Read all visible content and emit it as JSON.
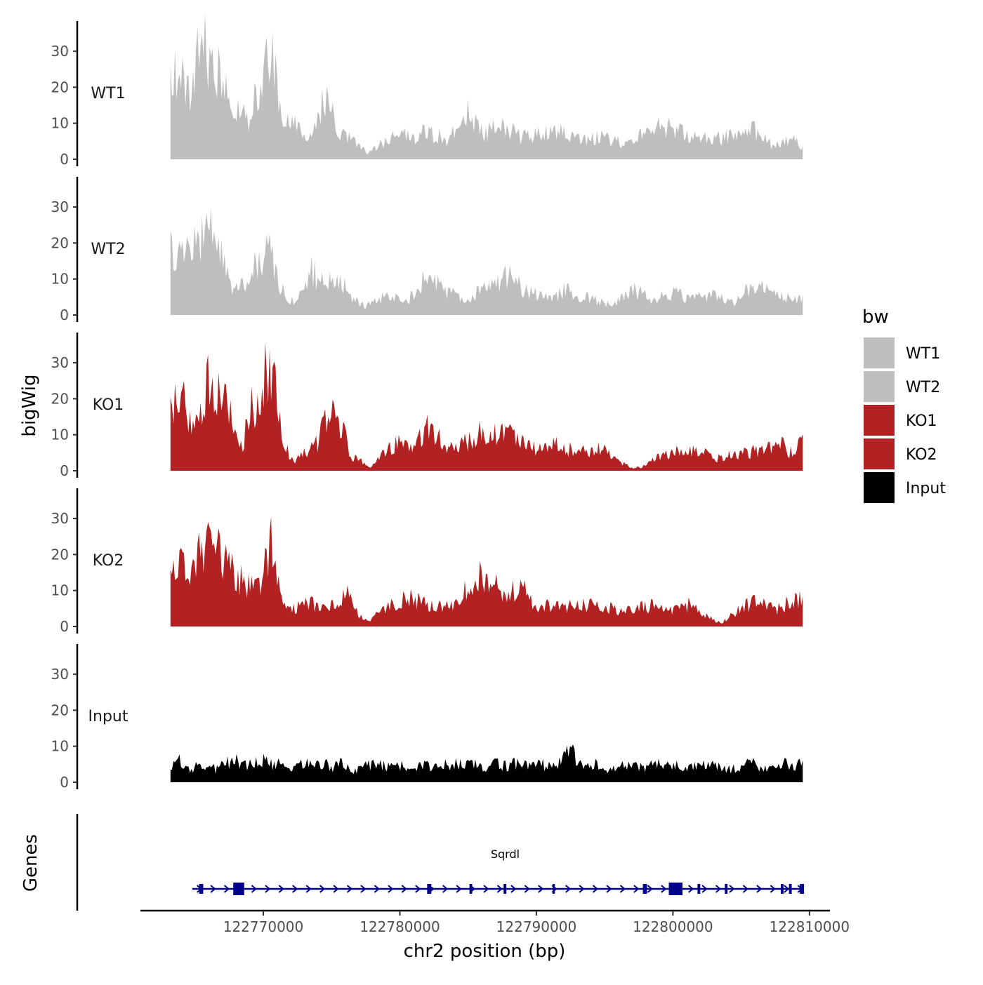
{
  "chart_data": {
    "type": "area",
    "ylabel": "bigWig",
    "xlabel": "chr2 position (bp)",
    "xlim": [
      122761000,
      122811500
    ],
    "region": [
      122763200,
      122809600
    ],
    "ylim": [
      0,
      38
    ],
    "y_ticks": [
      0,
      10,
      20,
      30
    ],
    "x_ticks": [
      122770000,
      122780000,
      122790000,
      122800000,
      122810000
    ],
    "x_tick_labels": [
      "122770000",
      "122780000",
      "122790000",
      "122800000",
      "122810000"
    ],
    "legend": {
      "title": "bw",
      "position": "right",
      "entries": [
        {
          "label": "WT1",
          "color": "#bebebe"
        },
        {
          "label": "WT2",
          "color": "#bebebe"
        },
        {
          "label": "KO1",
          "color": "#b22222"
        },
        {
          "label": "KO2",
          "color": "#b22222"
        },
        {
          "label": "Input",
          "color": "#000000"
        }
      ]
    },
    "tracks": [
      {
        "name": "WT1",
        "color": "#bebebe",
        "peaks": [
          [
            122763200,
            25
          ],
          [
            122763600,
            29
          ],
          [
            122764100,
            30
          ],
          [
            122764600,
            18
          ],
          [
            122765200,
            33
          ],
          [
            122765700,
            34
          ],
          [
            122766200,
            32
          ],
          [
            122766700,
            27
          ],
          [
            122767200,
            22
          ],
          [
            122767700,
            14
          ],
          [
            122768300,
            16
          ],
          [
            122768900,
            12
          ],
          [
            122769500,
            20
          ],
          [
            122770300,
            33
          ],
          [
            122770600,
            35
          ],
          [
            122771000,
            22
          ],
          [
            122771500,
            13
          ],
          [
            122772500,
            10
          ],
          [
            122773500,
            7
          ],
          [
            122774500,
            20
          ],
          [
            122775500,
            10
          ],
          [
            122776700,
            5
          ],
          [
            122777700,
            2
          ],
          [
            122779000,
            6
          ],
          [
            122780000,
            8
          ],
          [
            122781000,
            7
          ],
          [
            122782000,
            9
          ],
          [
            122783500,
            6
          ],
          [
            122784800,
            15
          ],
          [
            122786000,
            8
          ],
          [
            122787500,
            10
          ],
          [
            122789000,
            7
          ],
          [
            122790500,
            8
          ],
          [
            122792000,
            9
          ],
          [
            122793500,
            6
          ],
          [
            122795000,
            7
          ],
          [
            122796500,
            5
          ],
          [
            122798000,
            8
          ],
          [
            122799300,
            11
          ],
          [
            122800500,
            9
          ],
          [
            122801500,
            7
          ],
          [
            122803000,
            6
          ],
          [
            122804500,
            8
          ],
          [
            122805300,
            11
          ],
          [
            122806200,
            8
          ],
          [
            122807500,
            4
          ],
          [
            122808600,
            7
          ],
          [
            122809600,
            3
          ]
        ]
      },
      {
        "name": "WT2",
        "color": "#bebebe",
        "peaks": [
          [
            122763200,
            20
          ],
          [
            122763600,
            15
          ],
          [
            122764200,
            21
          ],
          [
            122764700,
            17
          ],
          [
            122765200,
            24
          ],
          [
            122765800,
            26
          ],
          [
            122766300,
            28
          ],
          [
            122766800,
            22
          ],
          [
            122767200,
            16
          ],
          [
            122767700,
            8
          ],
          [
            122768300,
            9
          ],
          [
            122769000,
            12
          ],
          [
            122769700,
            17
          ],
          [
            122770400,
            21
          ],
          [
            122771000,
            12
          ],
          [
            122771600,
            6
          ],
          [
            122772500,
            4
          ],
          [
            122773500,
            14
          ],
          [
            122774500,
            9
          ],
          [
            122775700,
            12
          ],
          [
            122776500,
            5
          ],
          [
            122777500,
            3
          ],
          [
            122779000,
            6
          ],
          [
            122780500,
            4
          ],
          [
            122782000,
            13
          ],
          [
            122783500,
            7
          ],
          [
            122785000,
            5
          ],
          [
            122786500,
            9
          ],
          [
            122787800,
            13
          ],
          [
            122789500,
            7
          ],
          [
            122791000,
            5
          ],
          [
            122792000,
            8
          ],
          [
            122793500,
            6
          ],
          [
            122795500,
            3
          ],
          [
            122797000,
            8
          ],
          [
            122798500,
            5
          ],
          [
            122800000,
            7
          ],
          [
            122801500,
            5
          ],
          [
            122803000,
            7
          ],
          [
            122804500,
            4
          ],
          [
            122805500,
            8
          ],
          [
            122807000,
            9
          ],
          [
            122808500,
            5
          ],
          [
            122809600,
            5
          ]
        ]
      },
      {
        "name": "KO1",
        "color": "#b22222",
        "peaks": [
          [
            122763200,
            24
          ],
          [
            122763700,
            20
          ],
          [
            122764300,
            22
          ],
          [
            122764800,
            14
          ],
          [
            122765300,
            20
          ],
          [
            122765800,
            26
          ],
          [
            122766300,
            29
          ],
          [
            122766800,
            25
          ],
          [
            122767400,
            20
          ],
          [
            122768000,
            13
          ],
          [
            122768500,
            7
          ],
          [
            122769000,
            20
          ],
          [
            122769700,
            22
          ],
          [
            122770300,
            33
          ],
          [
            122770800,
            28
          ],
          [
            122771400,
            9
          ],
          [
            122772200,
            3
          ],
          [
            122773000,
            6
          ],
          [
            122774000,
            9
          ],
          [
            122774800,
            18
          ],
          [
            122775600,
            16
          ],
          [
            122776400,
            5
          ],
          [
            122777200,
            3
          ],
          [
            122777700,
            1
          ],
          [
            122778500,
            4
          ],
          [
            122779800,
            9
          ],
          [
            122781000,
            6
          ],
          [
            122782100,
            15
          ],
          [
            122783500,
            7
          ],
          [
            122785000,
            9
          ],
          [
            122786300,
            13
          ],
          [
            122787700,
            11
          ],
          [
            122788800,
            11
          ],
          [
            122790000,
            7
          ],
          [
            122791500,
            8
          ],
          [
            122793000,
            6
          ],
          [
            122794800,
            7
          ],
          [
            122796000,
            3
          ],
          [
            122797000,
            1
          ],
          [
            122797700,
            1
          ],
          [
            122798800,
            4
          ],
          [
            122800200,
            6
          ],
          [
            122801500,
            7
          ],
          [
            122803000,
            4
          ],
          [
            122804500,
            5
          ],
          [
            122805800,
            6
          ],
          [
            122806800,
            7
          ],
          [
            122807800,
            9
          ],
          [
            122808600,
            6
          ],
          [
            122809600,
            9
          ]
        ]
      },
      {
        "name": "KO2",
        "color": "#b22222",
        "peaks": [
          [
            122763200,
            17
          ],
          [
            122763600,
            16
          ],
          [
            122764200,
            20
          ],
          [
            122764700,
            18
          ],
          [
            122765200,
            22
          ],
          [
            122765800,
            24
          ],
          [
            122766300,
            28
          ],
          [
            122766800,
            22
          ],
          [
            122767300,
            20
          ],
          [
            122767900,
            16
          ],
          [
            122768500,
            14
          ],
          [
            122769300,
            12
          ],
          [
            122770100,
            18
          ],
          [
            122770600,
            27
          ],
          [
            122771100,
            13
          ],
          [
            122771700,
            5
          ],
          [
            122772500,
            6
          ],
          [
            122773500,
            8
          ],
          [
            122774500,
            5
          ],
          [
            122775300,
            8
          ],
          [
            122776300,
            11
          ],
          [
            122777000,
            3
          ],
          [
            122777700,
            2
          ],
          [
            122779200,
            6
          ],
          [
            122780500,
            9
          ],
          [
            122781500,
            8
          ],
          [
            122782500,
            7
          ],
          [
            122783800,
            6
          ],
          [
            122785100,
            13
          ],
          [
            122786000,
            17
          ],
          [
            122786700,
            16
          ],
          [
            122787500,
            8
          ],
          [
            122788800,
            14
          ],
          [
            122790000,
            6
          ],
          [
            122791500,
            7
          ],
          [
            122793000,
            6
          ],
          [
            122794500,
            8
          ],
          [
            122795700,
            5
          ],
          [
            122797000,
            5
          ],
          [
            122798500,
            7
          ],
          [
            122800000,
            5
          ],
          [
            122801200,
            7
          ],
          [
            122802500,
            3
          ],
          [
            122803500,
            1
          ],
          [
            122804500,
            4
          ],
          [
            122805500,
            7
          ],
          [
            122806500,
            8
          ],
          [
            122807500,
            5
          ],
          [
            122808500,
            8
          ],
          [
            122809600,
            9
          ]
        ]
      },
      {
        "name": "Input",
        "color": "#000000",
        "peaks": [
          [
            122763200,
            4
          ],
          [
            122763800,
            7
          ],
          [
            122764500,
            4
          ],
          [
            122765200,
            5
          ],
          [
            122765800,
            6
          ],
          [
            122766500,
            4
          ],
          [
            122767200,
            6
          ],
          [
            122767900,
            7
          ],
          [
            122768600,
            5
          ],
          [
            122769400,
            6
          ],
          [
            122770100,
            7
          ],
          [
            122770700,
            5
          ],
          [
            122771500,
            6
          ],
          [
            122772200,
            4
          ],
          [
            122773000,
            6
          ],
          [
            122773700,
            5
          ],
          [
            122774400,
            6
          ],
          [
            122775100,
            5
          ],
          [
            122775800,
            6
          ],
          [
            122776600,
            4
          ],
          [
            122777400,
            5
          ],
          [
            122778200,
            6
          ],
          [
            122779000,
            5
          ],
          [
            122779800,
            6
          ],
          [
            122780600,
            4
          ],
          [
            122781400,
            6
          ],
          [
            122782200,
            5
          ],
          [
            122783000,
            6
          ],
          [
            122783800,
            5
          ],
          [
            122784600,
            7
          ],
          [
            122785400,
            6
          ],
          [
            122786200,
            4
          ],
          [
            122787000,
            6
          ],
          [
            122787800,
            5
          ],
          [
            122788600,
            6
          ],
          [
            122789400,
            5
          ],
          [
            122790200,
            6
          ],
          [
            122791000,
            5
          ],
          [
            122791800,
            7
          ],
          [
            122792400,
            12
          ],
          [
            122793000,
            6
          ],
          [
            122793800,
            5
          ],
          [
            122794600,
            6
          ],
          [
            122795400,
            4
          ],
          [
            122796200,
            5
          ],
          [
            122797000,
            6
          ],
          [
            122797800,
            5
          ],
          [
            122798600,
            6
          ],
          [
            122799400,
            5
          ],
          [
            122800200,
            6
          ],
          [
            122801000,
            4
          ],
          [
            122801800,
            5
          ],
          [
            122802600,
            6
          ],
          [
            122803400,
            5
          ],
          [
            122804200,
            4
          ],
          [
            122805000,
            5
          ],
          [
            122805800,
            6
          ],
          [
            122806600,
            5
          ],
          [
            122807400,
            4
          ],
          [
            122808200,
            6
          ],
          [
            122808900,
            5
          ],
          [
            122809600,
            6
          ]
        ]
      }
    ],
    "gene_track": {
      "label": "Genes",
      "gene_name": "Sqrdl",
      "color": "#00008b",
      "start": 122764800,
      "end": 122809600,
      "exons": [
        [
          122765300,
          122765600
        ],
        [
          122767800,
          122768600
        ],
        [
          122782000,
          122782300
        ],
        [
          122785100,
          122785300
        ],
        [
          122787600,
          122787800
        ],
        [
          122791200,
          122791250
        ],
        [
          122797800,
          122798100
        ],
        [
          122799700,
          122800700
        ],
        [
          122801800,
          122802000
        ],
        [
          122803800,
          122804000
        ],
        [
          122807900,
          122808100
        ],
        [
          122808500,
          122808700
        ],
        [
          122809300,
          122809600
        ]
      ]
    }
  }
}
